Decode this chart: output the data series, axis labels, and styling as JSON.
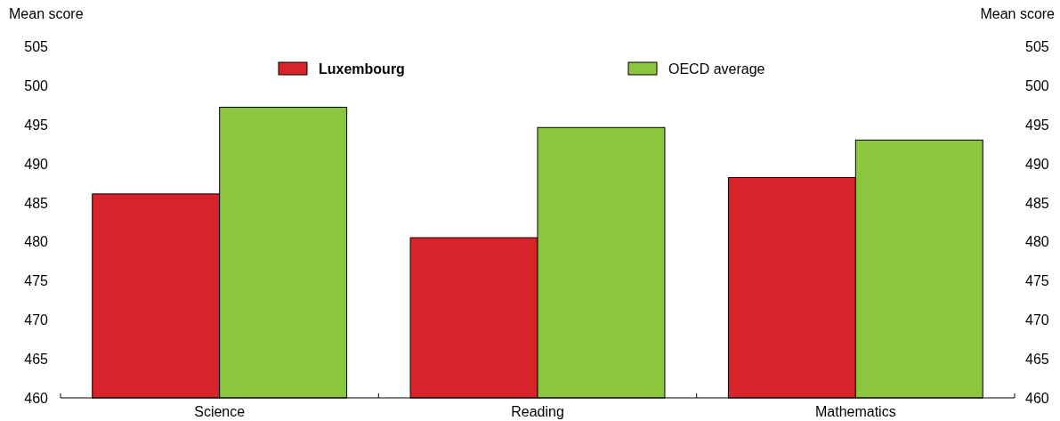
{
  "chart_data": {
    "type": "bar",
    "categories": [
      "Science",
      "Reading",
      "Mathematics"
    ],
    "series": [
      {
        "name": "Luxembourg",
        "color": "#d9232a",
        "values": [
          486.1,
          480.5,
          488.2
        ]
      },
      {
        "name": "OECD average",
        "color": "#8cc63f",
        "values": [
          497.2,
          494.6,
          493.0
        ]
      }
    ],
    "ylabel": "Mean score",
    "y2label": "Mean score",
    "ylim": [
      460,
      505
    ],
    "yticks": [
      460,
      465,
      470,
      475,
      480,
      485,
      490,
      495,
      500,
      505
    ],
    "y2lim": [
      460,
      505
    ],
    "y2ticks": [
      460,
      465,
      470,
      475,
      480,
      485,
      490,
      495,
      500,
      505
    ],
    "legend": "top",
    "grid": false
  }
}
